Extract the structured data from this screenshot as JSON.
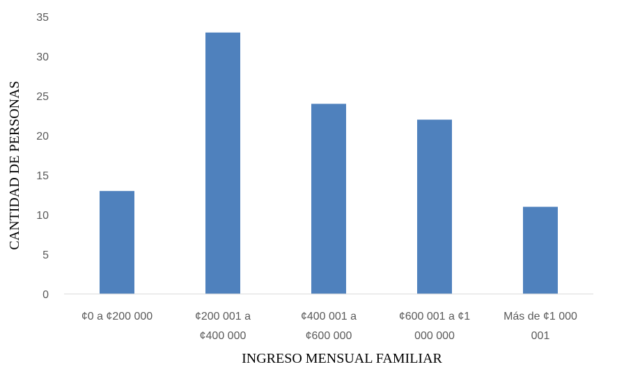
{
  "chart_data": {
    "type": "bar",
    "title": "",
    "xlabel": "INGRESO MENSUAL FAMILIAR",
    "ylabel": "CANTIDAD DE PERSONAS",
    "ylim": [
      0,
      35
    ],
    "yticks": [
      "0",
      "5",
      "10",
      "15",
      "20",
      "25",
      "30",
      "35"
    ],
    "grid": false,
    "legend": "none",
    "bar_color": "#4F81BD",
    "categories": [
      [
        "¢0 a ¢200 000"
      ],
      [
        "¢200 001 a",
        "¢400 000"
      ],
      [
        "¢400 001 a",
        "¢600 000"
      ],
      [
        "¢600 001 a ¢1",
        "000 000"
      ],
      [
        "Más de ¢1 000",
        "001"
      ]
    ],
    "values": [
      13,
      33,
      24,
      22,
      11
    ]
  }
}
